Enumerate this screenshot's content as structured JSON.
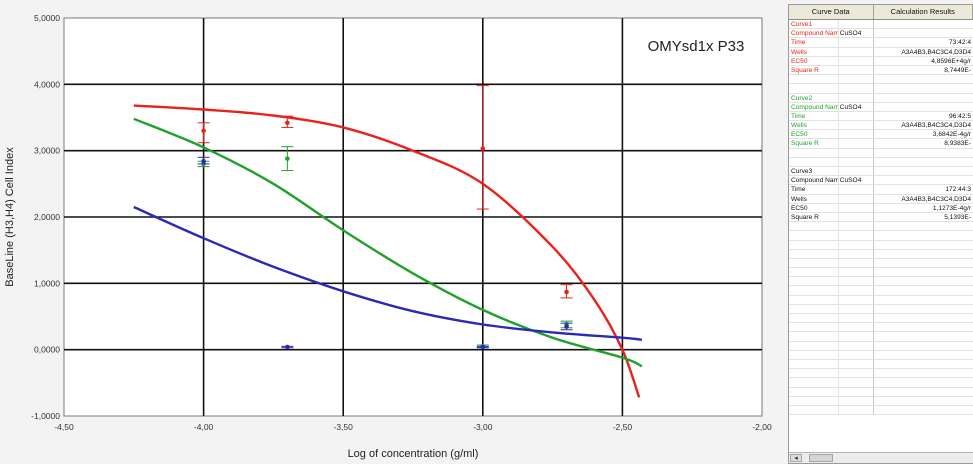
{
  "chart_data": {
    "type": "scatter",
    "title": "OMYsd1x P33",
    "xlabel": "Log of concentration (g/ml)",
    "ylabel": "BaseLine (H3,H4) Cell Index",
    "xlim": [
      -4.5,
      -2.0
    ],
    "ylim": [
      -1.0,
      5.0
    ],
    "xticks": [
      -4.5,
      -4.0,
      -3.5,
      -3.0,
      -2.5,
      -2.0
    ],
    "xtick_labels": [
      "-4,50",
      "-4,00",
      "-3,50",
      "-3,00",
      "-2,50",
      "-2,00"
    ],
    "yticks": [
      -1,
      0,
      1,
      2,
      3,
      4,
      5
    ],
    "ytick_labels": [
      "-1,0000",
      "0,0000",
      "1,0000",
      "2,0000",
      "3,0000",
      "4,0000",
      "5,0000"
    ],
    "grid": true,
    "series": [
      {
        "name": "Curve1",
        "color": "#e8231b",
        "curve": [
          [
            -4.25,
            3.68
          ],
          [
            -4.0,
            3.62
          ],
          [
            -3.75,
            3.53
          ],
          [
            -3.5,
            3.35
          ],
          [
            -3.25,
            3.0
          ],
          [
            -3.0,
            2.5
          ],
          [
            -2.75,
            1.55
          ],
          [
            -2.6,
            0.75
          ],
          [
            -2.5,
            0.0
          ],
          [
            -2.44,
            -0.72
          ]
        ],
        "points": [
          {
            "x": -4.0,
            "y": 3.3,
            "lo": 3.12,
            "hi": 3.42
          },
          {
            "x": -3.7,
            "y": 3.42,
            "lo": 3.35,
            "hi": 3.52
          },
          {
            "x": -3.0,
            "y": 3.03,
            "lo": 2.12,
            "hi": 3.98
          },
          {
            "x": -2.7,
            "y": 0.87,
            "lo": 0.78,
            "hi": 0.98
          }
        ]
      },
      {
        "name": "Curve2",
        "color": "#1fa12a",
        "curve": [
          [
            -4.25,
            3.48
          ],
          [
            -4.0,
            3.05
          ],
          [
            -3.75,
            2.5
          ],
          [
            -3.5,
            1.8
          ],
          [
            -3.25,
            1.15
          ],
          [
            -3.0,
            0.6
          ],
          [
            -2.75,
            0.18
          ],
          [
            -2.5,
            -0.12
          ],
          [
            -2.43,
            -0.25
          ]
        ],
        "points": [
          {
            "x": -4.0,
            "y": 2.8,
            "lo": 2.76,
            "hi": 2.84
          },
          {
            "x": -3.7,
            "y": 2.88,
            "lo": 2.7,
            "hi": 3.06
          },
          {
            "x": -3.0,
            "y": 0.05,
            "lo": 0.03,
            "hi": 0.07
          },
          {
            "x": -2.7,
            "y": 0.38,
            "lo": 0.33,
            "hi": 0.43
          }
        ]
      },
      {
        "name": "Curve3",
        "color": "#2a2ab4",
        "curve": [
          [
            -4.25,
            2.15
          ],
          [
            -4.0,
            1.68
          ],
          [
            -3.75,
            1.25
          ],
          [
            -3.5,
            0.88
          ],
          [
            -3.25,
            0.58
          ],
          [
            -3.0,
            0.38
          ],
          [
            -2.75,
            0.26
          ],
          [
            -2.5,
            0.18
          ],
          [
            -2.43,
            0.15
          ]
        ],
        "points": [
          {
            "x": -4.0,
            "y": 2.84,
            "lo": 2.8,
            "hi": 2.9
          },
          {
            "x": -3.7,
            "y": 0.04,
            "lo": 0.03,
            "hi": 0.05
          },
          {
            "x": -3.0,
            "y": 0.04,
            "lo": 0.03,
            "hi": 0.05
          },
          {
            "x": -2.7,
            "y": 0.35,
            "lo": 0.3,
            "hi": 0.4
          }
        ]
      }
    ]
  },
  "results_panel": {
    "headers": [
      "Curve Data",
      "Calculation Results"
    ],
    "label_colors": {
      "curve1": "#e8231b",
      "curve2": "#1fa12a",
      "curve3": "#111111"
    },
    "curves": [
      {
        "name": "Curve1",
        "rows": [
          {
            "label": "Compound Name",
            "value": "CuSO4",
            "result": ""
          },
          {
            "label": "Time",
            "value": "",
            "result": "73:42:4"
          },
          {
            "label": "Wells",
            "value": "",
            "result": "A3A4B3,B4C3C4,D3D4"
          },
          {
            "label": "EC50",
            "value": "",
            "result": "4,8596E+4g/r"
          },
          {
            "label": "Square R",
            "value": "",
            "result": "8,7449E-"
          }
        ]
      },
      {
        "name": "Curve2",
        "rows": [
          {
            "label": "Compound Name",
            "value": "CuSO4",
            "result": ""
          },
          {
            "label": "Time",
            "value": "",
            "result": "96:42:5"
          },
          {
            "label": "Wells",
            "value": "",
            "result": "A3A4B3,B4C3C4,D3D4"
          },
          {
            "label": "EC50",
            "value": "",
            "result": "3,6842E-4g/r"
          },
          {
            "label": "Square R",
            "value": "",
            "result": "8,9383E-"
          }
        ]
      },
      {
        "name": "Curve3",
        "rows": [
          {
            "label": "Compound Name",
            "value": "CuSO4",
            "result": ""
          },
          {
            "label": "Time",
            "value": "",
            "result": "172:44:3"
          },
          {
            "label": "Wells",
            "value": "",
            "result": "A3A4B3,B4C3C4,D3D4"
          },
          {
            "label": "EC50",
            "value": "",
            "result": "1,1273E-4g/r"
          },
          {
            "label": "Square R",
            "value": "",
            "result": "5,1393E-"
          }
        ]
      }
    ]
  }
}
